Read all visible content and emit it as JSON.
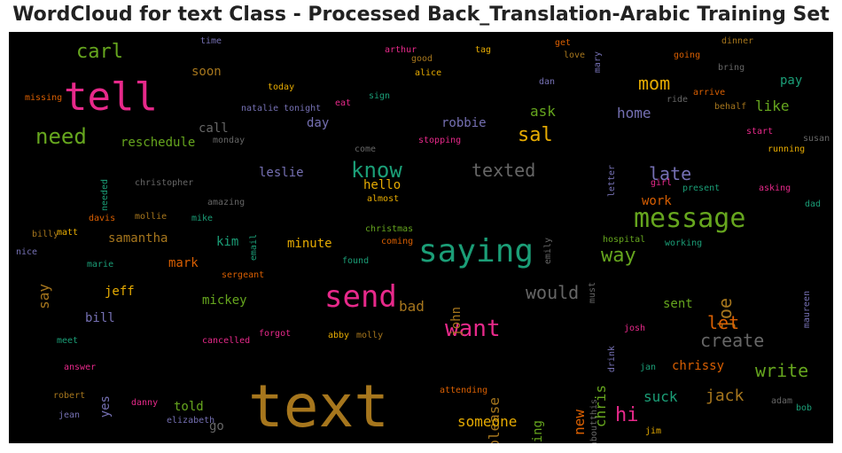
{
  "title": "WordCloud for text Class - Processed Back_Translation-Arabic Training Set",
  "words": [
    {
      "text": "tell",
      "color": "#e7298a"
    },
    {
      "text": "text",
      "color": "#a6761d"
    },
    {
      "text": "saying",
      "color": "#1b9e77"
    },
    {
      "text": "message",
      "color": "#66a61e"
    },
    {
      "text": "send",
      "color": "#e7298a"
    },
    {
      "text": "want",
      "color": "#e7298a"
    },
    {
      "text": "know",
      "color": "#1b9e77"
    },
    {
      "text": "texted",
      "color": "#666666"
    },
    {
      "text": "need",
      "color": "#66a61e"
    },
    {
      "text": "carl",
      "color": "#66a61e"
    },
    {
      "text": "sal",
      "color": "#e6ab02"
    },
    {
      "text": "mom",
      "color": "#e6ab02"
    },
    {
      "text": "way",
      "color": "#66a61e"
    },
    {
      "text": "late",
      "color": "#7570b3"
    },
    {
      "text": "joe",
      "color": "#a6761d"
    },
    {
      "text": "would",
      "color": "#666666"
    },
    {
      "text": "create",
      "color": "#666666"
    },
    {
      "text": "let",
      "color": "#d95f02"
    },
    {
      "text": "write",
      "color": "#66a61e"
    },
    {
      "text": "hi",
      "color": "#e7298a"
    },
    {
      "text": "jack",
      "color": "#a6761d"
    },
    {
      "text": "chris",
      "color": "#66a61e"
    },
    {
      "text": "new",
      "color": "#d95f02"
    },
    {
      "text": "please",
      "color": "#a6761d"
    },
    {
      "text": "someone",
      "color": "#e6ab02"
    },
    {
      "text": "home",
      "color": "#7570b3"
    },
    {
      "text": "like",
      "color": "#66a61e"
    },
    {
      "text": "ask",
      "color": "#66a61e"
    },
    {
      "text": "pay",
      "color": "#1b9e77"
    },
    {
      "text": "robbie",
      "color": "#7570b3"
    },
    {
      "text": "reschedule",
      "color": "#66a61e"
    },
    {
      "text": "call",
      "color": "#666666"
    },
    {
      "text": "day",
      "color": "#7570b3"
    },
    {
      "text": "soon",
      "color": "#a6761d"
    },
    {
      "text": "hello",
      "color": "#e6ab02"
    },
    {
      "text": "leslie",
      "color": "#7570b3"
    },
    {
      "text": "minute",
      "color": "#e6ab02"
    },
    {
      "text": "mark",
      "color": "#d95f02"
    },
    {
      "text": "samantha",
      "color": "#a6761d"
    },
    {
      "text": "kim",
      "color": "#1b9e77"
    },
    {
      "text": "say",
      "color": "#a6761d"
    },
    {
      "text": "jeff",
      "color": "#e6ab02"
    },
    {
      "text": "mickey",
      "color": "#66a61e"
    },
    {
      "text": "bill",
      "color": "#7570b3"
    },
    {
      "text": "bad",
      "color": "#a6761d"
    },
    {
      "text": "john",
      "color": "#a6761d"
    },
    {
      "text": "sent",
      "color": "#66a61e"
    },
    {
      "text": "work",
      "color": "#d95f02"
    },
    {
      "text": "chrissy",
      "color": "#d95f02"
    },
    {
      "text": "suck",
      "color": "#1b9e77"
    },
    {
      "text": "meeting",
      "color": "#66a61e"
    },
    {
      "text": "told",
      "color": "#66a61e"
    },
    {
      "text": "yes",
      "color": "#7570b3"
    },
    {
      "text": "go",
      "color": "#666666"
    },
    {
      "text": "time",
      "color": "#7570b3"
    },
    {
      "text": "arthur",
      "color": "#e7298a"
    },
    {
      "text": "tag",
      "color": "#e6ab02"
    },
    {
      "text": "get",
      "color": "#d95f02"
    },
    {
      "text": "dinner",
      "color": "#a6761d"
    },
    {
      "text": "good",
      "color": "#a6761d"
    },
    {
      "text": "love",
      "color": "#a6761d"
    },
    {
      "text": "mary",
      "color": "#7570b3"
    },
    {
      "text": "going",
      "color": "#d95f02"
    },
    {
      "text": "bring",
      "color": "#666666"
    },
    {
      "text": "alice",
      "color": "#e6ab02"
    },
    {
      "text": "dan",
      "color": "#7570b3"
    },
    {
      "text": "arrive",
      "color": "#d95f02"
    },
    {
      "text": "behalf",
      "color": "#a6761d"
    },
    {
      "text": "missing",
      "color": "#d95f02"
    },
    {
      "text": "today",
      "color": "#e6ab02"
    },
    {
      "text": "sign",
      "color": "#1b9e77"
    },
    {
      "text": "ride",
      "color": "#666666"
    },
    {
      "text": "eat",
      "color": "#e7298a"
    },
    {
      "text": "natalie",
      "color": "#7570b3"
    },
    {
      "text": "tonight",
      "color": "#7570b3"
    },
    {
      "text": "start",
      "color": "#e7298a"
    },
    {
      "text": "monday",
      "color": "#666666"
    },
    {
      "text": "stopping",
      "color": "#e7298a"
    },
    {
      "text": "come",
      "color": "#666666"
    },
    {
      "text": "susan",
      "color": "#666666"
    },
    {
      "text": "running",
      "color": "#e6ab02"
    },
    {
      "text": "christopher",
      "color": "#666666"
    },
    {
      "text": "letter",
      "color": "#7570b3"
    },
    {
      "text": "girl",
      "color": "#e7298a"
    },
    {
      "text": "present",
      "color": "#1b9e77"
    },
    {
      "text": "asking",
      "color": "#e7298a"
    },
    {
      "text": "needed",
      "color": "#1b9e77"
    },
    {
      "text": "amazing",
      "color": "#666666"
    },
    {
      "text": "almost",
      "color": "#e6ab02"
    },
    {
      "text": "dad",
      "color": "#1b9e77"
    },
    {
      "text": "davis",
      "color": "#d95f02"
    },
    {
      "text": "mollie",
      "color": "#a6761d"
    },
    {
      "text": "mike",
      "color": "#1b9e77"
    },
    {
      "text": "christmas",
      "color": "#66a61e"
    },
    {
      "text": "billy",
      "color": "#a6761d"
    },
    {
      "text": "matt",
      "color": "#e6ab02"
    },
    {
      "text": "email",
      "color": "#1b9e77"
    },
    {
      "text": "coming",
      "color": "#d95f02"
    },
    {
      "text": "emily",
      "color": "#666666"
    },
    {
      "text": "hospital",
      "color": "#66a61e"
    },
    {
      "text": "working",
      "color": "#1b9e77"
    },
    {
      "text": "nice",
      "color": "#7570b3"
    },
    {
      "text": "found",
      "color": "#1b9e77"
    },
    {
      "text": "marie",
      "color": "#1b9e77"
    },
    {
      "text": "sergeant",
      "color": "#d95f02"
    },
    {
      "text": "must",
      "color": "#666666"
    },
    {
      "text": "maureen",
      "color": "#7570b3"
    },
    {
      "text": "meet",
      "color": "#1b9e77"
    },
    {
      "text": "cancelled",
      "color": "#e7298a"
    },
    {
      "text": "forgot",
      "color": "#e7298a"
    },
    {
      "text": "abby",
      "color": "#e6ab02"
    },
    {
      "text": "molly",
      "color": "#a6761d"
    },
    {
      "text": "josh",
      "color": "#e7298a"
    },
    {
      "text": "answer",
      "color": "#e7298a"
    },
    {
      "text": "drink",
      "color": "#7570b3"
    },
    {
      "text": "jan",
      "color": "#1b9e77"
    },
    {
      "text": "robert",
      "color": "#a6761d"
    },
    {
      "text": "attending",
      "color": "#d95f02"
    },
    {
      "text": "danny",
      "color": "#e7298a"
    },
    {
      "text": "adam",
      "color": "#666666"
    },
    {
      "text": "bob",
      "color": "#1b9e77"
    },
    {
      "text": "jean",
      "color": "#7570b3"
    },
    {
      "text": "elizabeth",
      "color": "#7570b3"
    },
    {
      "text": "aboutthis",
      "color": "#666666"
    },
    {
      "text": "jim",
      "color": "#e6ab02"
    }
  ]
}
